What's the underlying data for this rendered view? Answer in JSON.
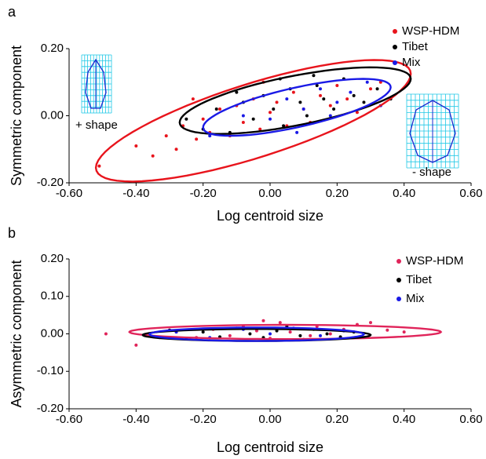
{
  "chart_data": [
    {
      "type": "scatter",
      "label": "a",
      "xlabel": "Log centroid size",
      "ylabel": "Symmetric component",
      "xlim": [
        -0.6,
        0.6
      ],
      "ylim": [
        -0.2,
        0.2
      ],
      "xticks": [
        {
          "value": -0.6,
          "label": "-0.60"
        },
        {
          "value": -0.4,
          "label": "-0.40"
        },
        {
          "value": -0.2,
          "label": "-0.20"
        },
        {
          "value": 0,
          "label": "0.00"
        },
        {
          "value": 0.2,
          "label": "0.20"
        },
        {
          "value": 0.4,
          "label": "0.40"
        },
        {
          "value": 0.6,
          "label": "0.60"
        }
      ],
      "yticks": [
        {
          "value": -0.2,
          "label": "-0.20"
        },
        {
          "value": 0,
          "label": "0.00"
        },
        {
          "value": 0.2,
          "label": "0.20"
        }
      ],
      "legend": "upper right",
      "annotations": [
        "+ shape",
        "- shape"
      ],
      "series": [
        {
          "name": "WSP-HDM",
          "color": "#e8141c",
          "x": [
            -0.51,
            -0.4,
            -0.35,
            -0.31,
            -0.28,
            -0.26,
            -0.22,
            -0.2,
            -0.18,
            -0.15,
            -0.12,
            -0.1,
            -0.08,
            -0.05,
            -0.03,
            0.0,
            0.02,
            0.05,
            0.07,
            0.1,
            0.12,
            0.15,
            0.18,
            0.2,
            0.23,
            0.26,
            0.3,
            0.33,
            -0.23,
            -0.02
          ],
          "y": [
            -0.15,
            -0.09,
            -0.12,
            -0.06,
            -0.1,
            -0.03,
            -0.07,
            -0.01,
            -0.05,
            0.02,
            -0.06,
            0.03,
            -0.02,
            0.05,
            -0.04,
            0.01,
            0.04,
            -0.03,
            0.07,
            0.02,
            -0.02,
            0.06,
            0.03,
            0.09,
            0.05,
            0.01,
            0.08,
            0.1,
            0.05,
            0.1
          ],
          "ellipse": {
            "center": [
              -0.05,
              -0.015
            ],
            "right": [
              0.42,
              0.125
            ],
            "half_height": 0.115
          }
        },
        {
          "name": "Tibet",
          "color": "#000000",
          "x": [
            -0.25,
            -0.2,
            -0.16,
            -0.12,
            -0.08,
            -0.05,
            -0.02,
            0.01,
            0.04,
            0.06,
            0.09,
            0.11,
            0.14,
            0.16,
            0.19,
            0.22,
            0.25,
            0.28,
            0.32,
            0.36,
            -0.1,
            0.03,
            0.13
          ],
          "y": [
            -0.01,
            -0.04,
            0.02,
            -0.05,
            0.04,
            -0.01,
            0.06,
            0.02,
            -0.03,
            0.08,
            0.04,
            0.0,
            0.09,
            0.05,
            0.02,
            0.11,
            0.06,
            0.04,
            0.08,
            0.05,
            0.07,
            0.11,
            0.12
          ],
          "ellipse": {
            "center": [
              0.075,
              0.045
            ],
            "right": [
              0.42,
              0.11
            ],
            "half_height": 0.075
          }
        },
        {
          "name": "Mix",
          "color": "#1a1ae6",
          "x": [
            -0.18,
            -0.08,
            0.0,
            0.05,
            0.1,
            0.15,
            0.2,
            0.24,
            0.29,
            0.33,
            0.08,
            0.18
          ],
          "y": [
            -0.06,
            0.0,
            -0.01,
            0.05,
            0.02,
            0.08,
            0.04,
            0.07,
            0.1,
            0.03,
            -0.05,
            0.0
          ],
          "ellipse": {
            "center": [
              0.08,
              0.025
            ],
            "right": [
              0.36,
              0.085
            ],
            "half_height": 0.06
          }
        }
      ]
    },
    {
      "type": "scatter",
      "label": "b",
      "xlabel": "Log centroid size",
      "ylabel": "Asymmetric component",
      "xlim": [
        -0.6,
        0.6
      ],
      "ylim": [
        -0.2,
        0.2
      ],
      "xticks": [
        {
          "value": -0.6,
          "label": "-0.60"
        },
        {
          "value": -0.4,
          "label": "-0.40"
        },
        {
          "value": -0.2,
          "label": "-0.20"
        },
        {
          "value": 0,
          "label": "0.00"
        },
        {
          "value": 0.2,
          "label": "0.20"
        },
        {
          "value": 0.4,
          "label": "0.40"
        },
        {
          "value": 0.6,
          "label": "0.60"
        }
      ],
      "yticks": [
        {
          "value": -0.2,
          "label": "-0.20"
        },
        {
          "value": -0.1,
          "label": "-0.10"
        },
        {
          "value": 0,
          "label": "0.00"
        },
        {
          "value": 0.1,
          "label": "0.10"
        },
        {
          "value": 0.2,
          "label": "0.20"
        }
      ],
      "legend": "upper right",
      "series": [
        {
          "name": "WSP-HDM",
          "color": "#e0245a",
          "x": [
            -0.49,
            -0.4,
            -0.33,
            -0.28,
            -0.22,
            -0.17,
            -0.12,
            -0.08,
            -0.04,
            0.0,
            0.03,
            0.06,
            0.1,
            0.14,
            0.18,
            0.22,
            0.26,
            0.3,
            0.35,
            0.4,
            -0.02,
            0.12
          ],
          "y": [
            0.0,
            -0.03,
            -0.01,
            0.005,
            -0.01,
            0.012,
            -0.005,
            0.02,
            0.008,
            -0.012,
            0.03,
            0.005,
            -0.015,
            0.02,
            0.0,
            0.012,
            0.025,
            0.03,
            0.01,
            0.005,
            0.035,
            -0.005
          ],
          "ellipse": {
            "center": [
              0.045,
              0.005
            ],
            "right": [
              0.51,
              0.005
            ],
            "half_height": 0.019
          }
        },
        {
          "name": "Tibet",
          "color": "#000000",
          "x": [
            -0.36,
            -0.3,
            -0.25,
            -0.2,
            -0.15,
            -0.1,
            -0.06,
            -0.02,
            0.02,
            0.05,
            0.09,
            0.13,
            0.17,
            0.21,
            0.25
          ],
          "y": [
            -0.005,
            0.01,
            -0.012,
            0.005,
            -0.008,
            0.015,
            0.0,
            -0.01,
            0.008,
            0.02,
            -0.005,
            0.012,
            0.0,
            -0.008,
            0.005
          ],
          "ellipse": {
            "center": [
              -0.04,
              -0.003
            ],
            "right": [
              0.3,
              -0.003
            ],
            "half_height": 0.016
          }
        },
        {
          "name": "Mix",
          "color": "#1a1ae6",
          "x": [
            -0.28,
            -0.18,
            -0.08,
            0.0,
            0.07,
            0.15,
            0.22
          ],
          "y": [
            0.005,
            -0.01,
            0.012,
            0.0,
            0.015,
            -0.005,
            0.008
          ],
          "ellipse": {
            "center": [
              -0.04,
              -0.001
            ],
            "right": [
              0.28,
              -0.001
            ],
            "half_height": 0.018
          }
        }
      ]
    }
  ]
}
